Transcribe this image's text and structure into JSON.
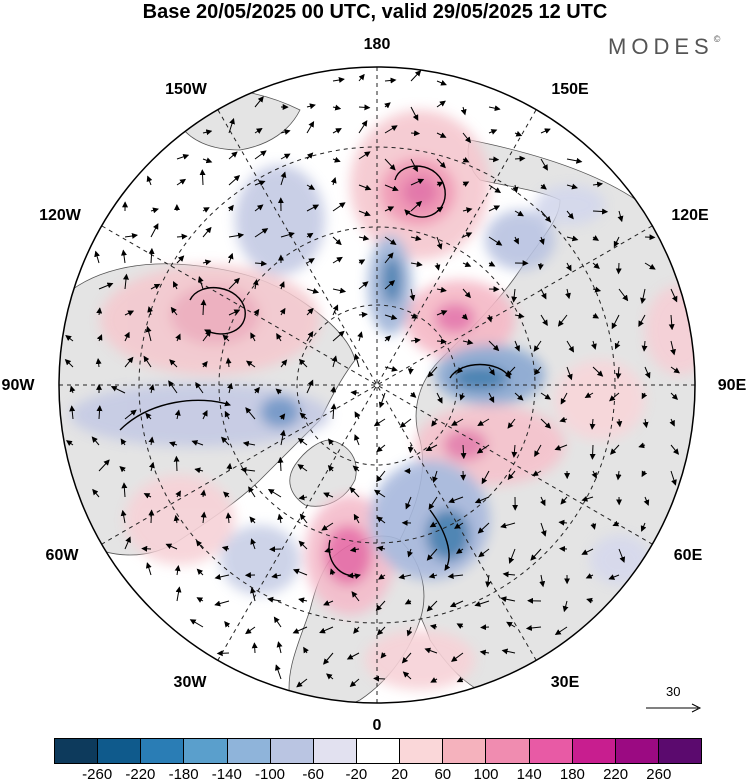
{
  "title": "Base 20/05/2025 00 UTC, valid 29/05/2025 12 UTC",
  "brand": "MODES",
  "brand_mark": "©",
  "longitude_labels": {
    "top": "180",
    "bottom": "0",
    "left": "90W",
    "right": "90E",
    "upper_left_1": "150W",
    "upper_left_2": "120W",
    "upper_right_1": "150E",
    "upper_right_2": "120E",
    "lower_left_1": "60W",
    "lower_left_2": "30W",
    "lower_right_1": "60E",
    "lower_right_2": "30E"
  },
  "reference_vector": "30",
  "colorbar": {
    "colors": [
      "#0d3a5c",
      "#0f5a8c",
      "#2a7db5",
      "#5a9fcc",
      "#8fb4da",
      "#bac5e2",
      "#e2e1f0",
      "#ffffff",
      "#fad7d9",
      "#f5b2bd",
      "#f08cb0",
      "#e85aa5",
      "#c81e8f",
      "#9b0a82",
      "#5b0a6e"
    ],
    "ticks": [
      "-260",
      "-220",
      "-180",
      "-140",
      "-100",
      "-60",
      "-20",
      "20",
      "60",
      "100",
      "140",
      "180",
      "220",
      "260"
    ]
  },
  "colors": {
    "land_gray": "#e6e6e6",
    "positive_light": "#f7cdd2",
    "positive_mid": "#f09ab0",
    "positive_strong": "#e2559a",
    "negative_light": "#c9cde6",
    "negative_mid": "#8fa6d2",
    "negative_strong": "#3d78ae"
  }
}
